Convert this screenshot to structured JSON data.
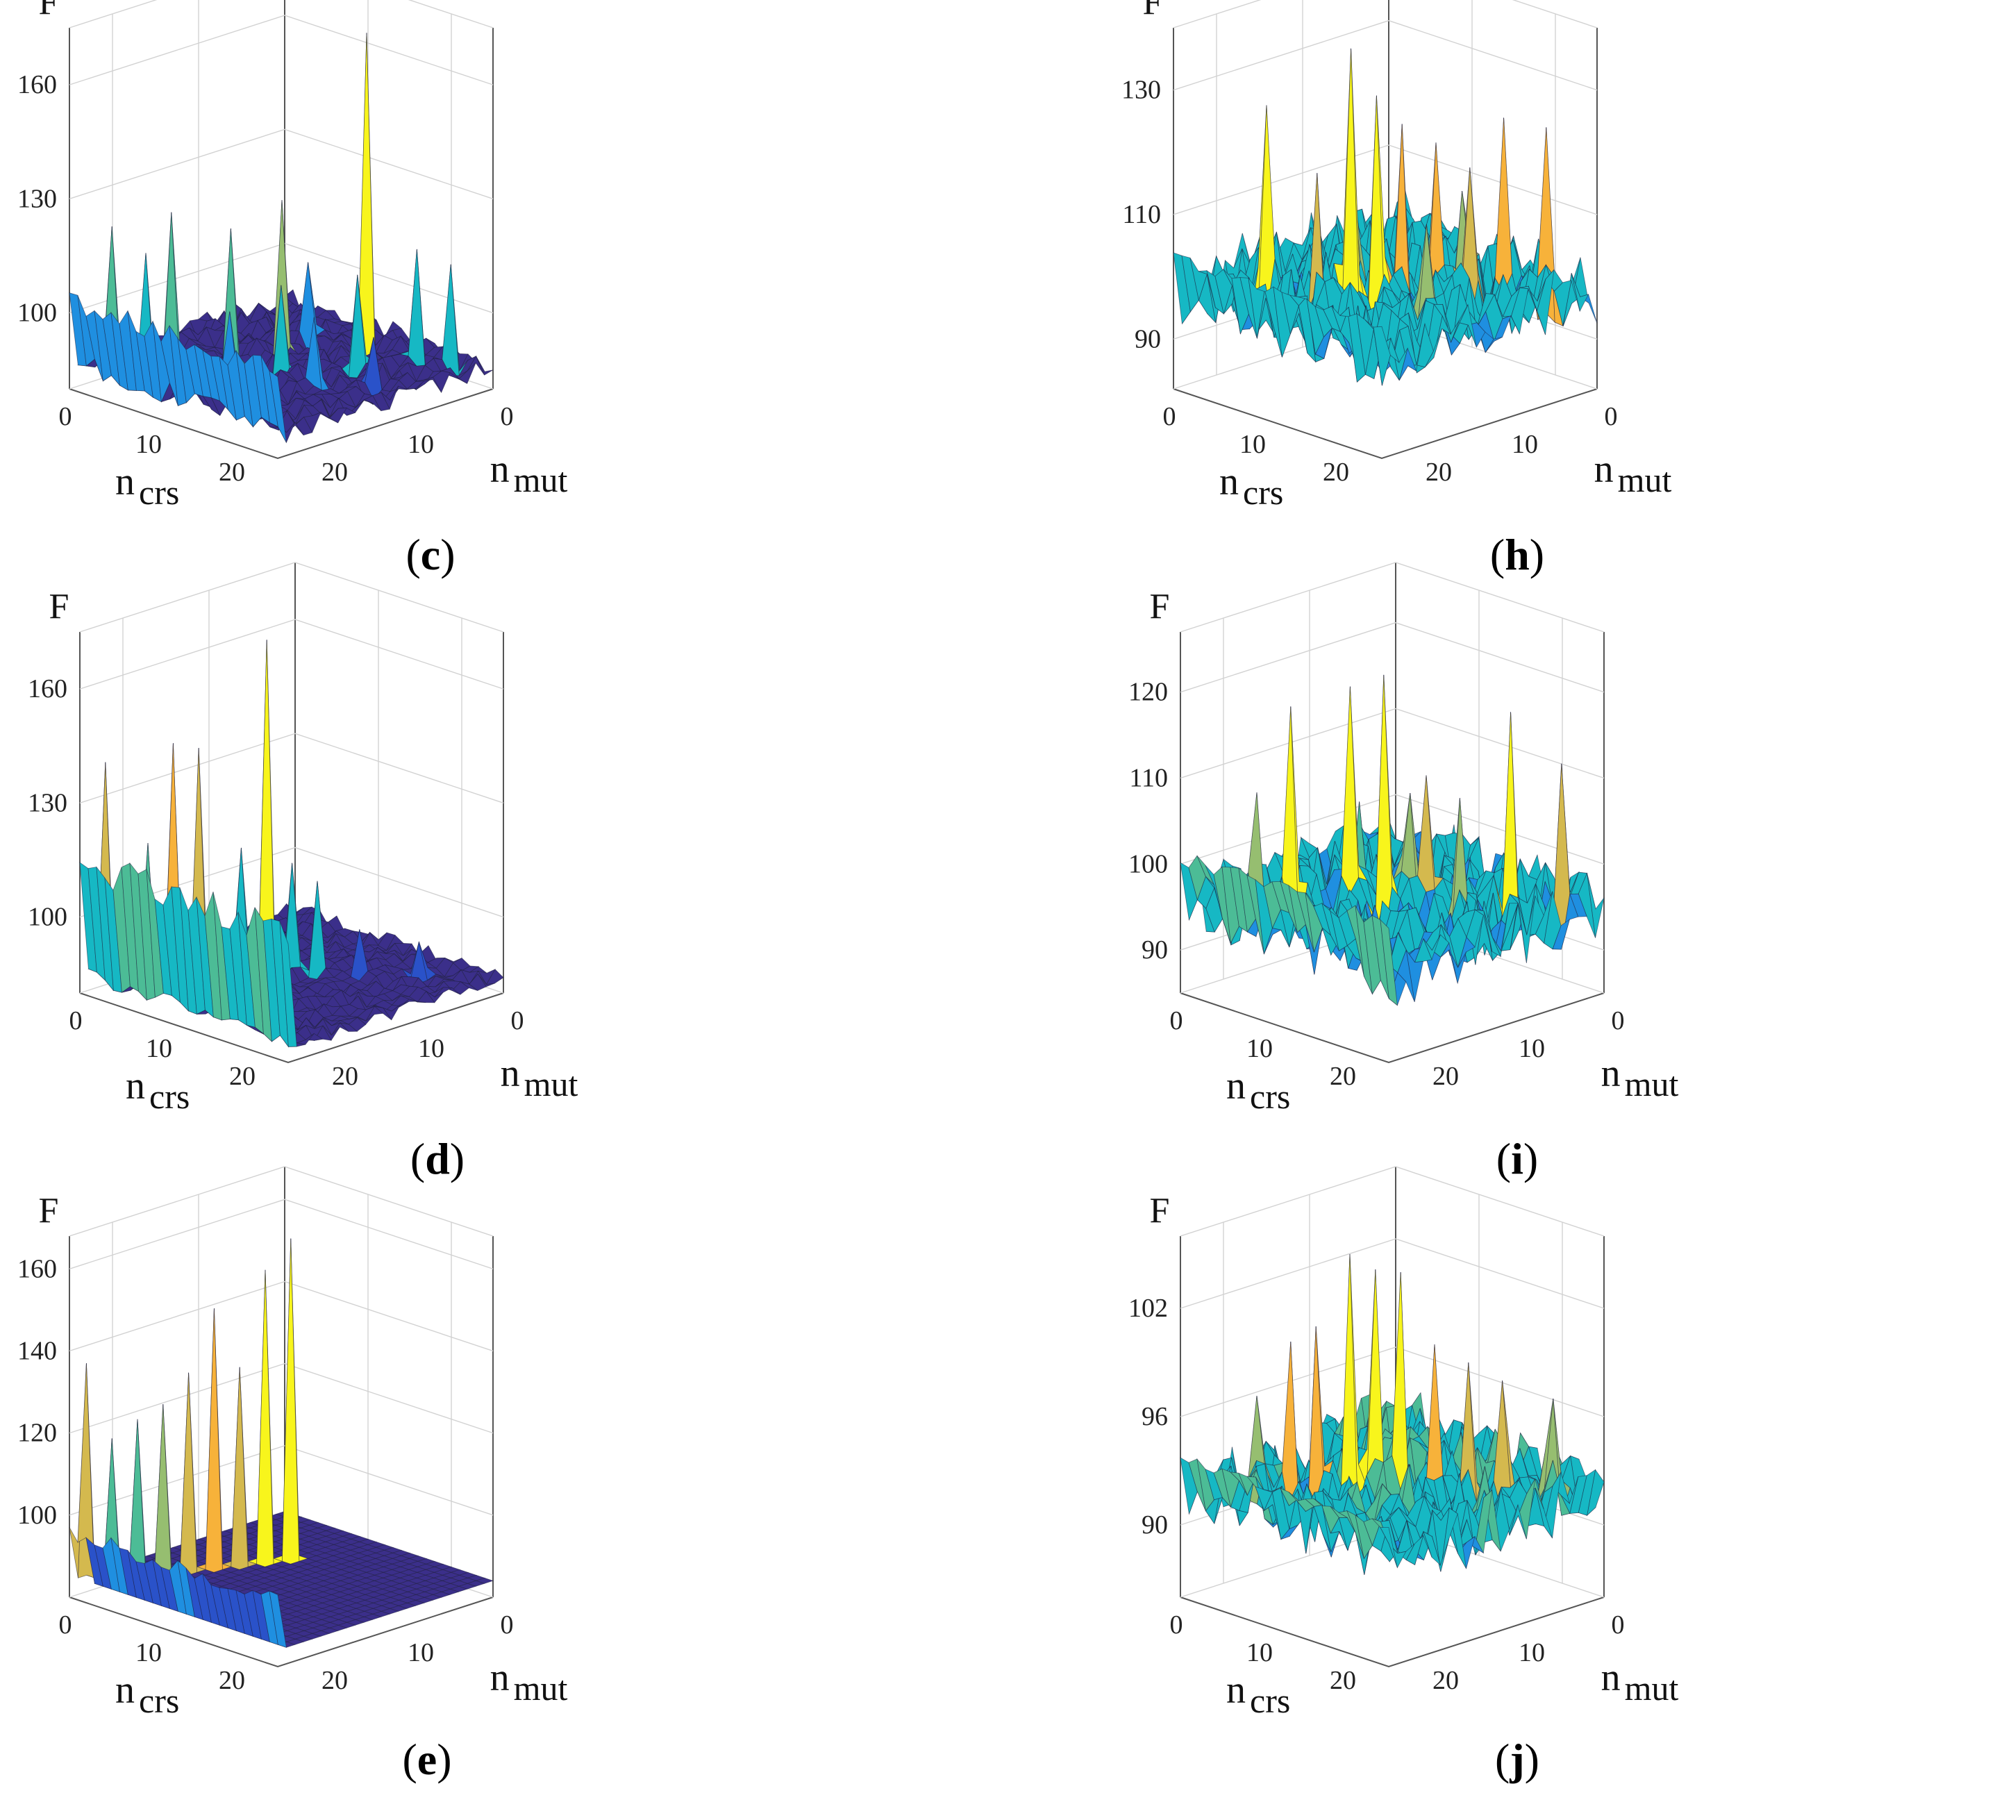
{
  "colors": {
    "level0": "#3b2f8a",
    "level1": "#2a52c9",
    "level2": "#1f8fe0",
    "level3": "#16b8c4",
    "level4": "#4cbc96",
    "level5": "#96be70",
    "level6": "#d4b94e",
    "level7": "#f7b23a",
    "level8": "#f8f51c"
  },
  "chart_data": [
    {
      "type": "surface3d",
      "panel": "c",
      "caption_open": "(",
      "caption_letter": "c",
      "caption_close": ")",
      "zlabel": "F",
      "xlabel_main": "n",
      "xlabel_sub": "crs",
      "ylabel_main": "n",
      "ylabel_sub": "mut",
      "zticks": [
        100,
        130,
        160
      ],
      "zlim": [
        80,
        175
      ],
      "x_ticks": [
        0,
        10,
        20
      ],
      "y_ticks": [
        0,
        10,
        20
      ],
      "xlim": [
        0,
        25
      ],
      "ylim": [
        0,
        25
      ],
      "base_level": 86,
      "noise": 3,
      "peaks": [
        {
          "x": 2,
          "y": 22,
          "z": 122
        },
        {
          "x": 4,
          "y": 20,
          "z": 115
        },
        {
          "x": 5,
          "y": 18,
          "z": 125
        },
        {
          "x": 8,
          "y": 14,
          "z": 120
        },
        {
          "x": 10,
          "y": 10,
          "z": 126
        },
        {
          "x": 13,
          "y": 13,
          "z": 108
        },
        {
          "x": 15,
          "y": 5,
          "z": 170
        },
        {
          "x": 17,
          "y": 8,
          "z": 110
        },
        {
          "x": 18,
          "y": 14,
          "z": 104
        },
        {
          "x": 20,
          "y": 4,
          "z": 116
        },
        {
          "x": 22,
          "y": 2,
          "z": 112
        },
        {
          "x": 12,
          "y": 18,
          "z": 104
        },
        {
          "x": 9,
          "y": 6,
          "z": 106
        },
        {
          "x": 21,
          "y": 10,
          "z": 98
        }
      ],
      "rise_edge": [
        0,
        106
      ]
    },
    {
      "type": "surface3d",
      "panel": "d",
      "caption_open": "(",
      "caption_letter": "d",
      "caption_close": ")",
      "zlabel": "F",
      "xlabel_main": "n",
      "xlabel_sub": "crs",
      "ylabel_main": "n",
      "ylabel_sub": "mut",
      "zticks": [
        100,
        130,
        160
      ],
      "zlim": [
        80,
        175
      ],
      "x_ticks": [
        0,
        10,
        20
      ],
      "y_ticks": [
        0,
        10,
        20
      ],
      "xlim": [
        0,
        25
      ],
      "ylim": [
        0,
        25
      ],
      "base_level": 84,
      "noise": 2,
      "peaks": [
        {
          "x": 1,
          "y": 23,
          "z": 140
        },
        {
          "x": 5,
          "y": 19,
          "z": 145
        },
        {
          "x": 6,
          "y": 17,
          "z": 143
        },
        {
          "x": 9,
          "y": 12,
          "z": 170
        },
        {
          "x": 3,
          "y": 20,
          "z": 118
        },
        {
          "x": 8,
          "y": 14,
          "z": 116
        },
        {
          "x": 11,
          "y": 11,
          "z": 112
        },
        {
          "x": 13,
          "y": 10,
          "z": 108
        },
        {
          "x": 16,
          "y": 8,
          "z": 96
        },
        {
          "x": 19,
          "y": 4,
          "z": 92
        }
      ],
      "rise_edge": [
        0,
        120
      ]
    },
    {
      "type": "surface3d",
      "panel": "e",
      "caption_open": "(",
      "caption_letter": "e",
      "caption_close": ")",
      "zlabel": "F",
      "xlabel_main": "n",
      "xlabel_sub": "crs",
      "ylabel_main": "n",
      "ylabel_sub": "mut",
      "zticks": [
        100,
        120,
        140,
        160
      ],
      "zlim": [
        80,
        168
      ],
      "x_ticks": [
        0,
        10,
        20
      ],
      "y_ticks": [
        0,
        10,
        20
      ],
      "xlim": [
        0,
        25
      ],
      "ylim": [
        0,
        25
      ],
      "base_level": 84,
      "noise": 0,
      "peaks": [
        {
          "x": 1,
          "y": 24,
          "z": 137
        },
        {
          "x": 2,
          "y": 22,
          "z": 118
        },
        {
          "x": 3,
          "y": 20,
          "z": 122
        },
        {
          "x": 4,
          "y": 18,
          "z": 125
        },
        {
          "x": 5,
          "y": 16,
          "z": 132
        },
        {
          "x": 6,
          "y": 14,
          "z": 147
        },
        {
          "x": 7,
          "y": 12,
          "z": 132
        },
        {
          "x": 8,
          "y": 10,
          "z": 155
        },
        {
          "x": 9,
          "y": 8,
          "z": 162
        }
      ],
      "rise_edge": [
        0,
        98
      ]
    },
    {
      "type": "surface3d",
      "panel": "h",
      "caption_open": "(",
      "caption_letter": "h",
      "caption_close": ")",
      "zlabel": "F",
      "xlabel_main": "n",
      "xlabel_sub": "crs",
      "ylabel_main": "n",
      "ylabel_sub": "mut",
      "zticks": [
        90,
        110,
        130
      ],
      "zlim": [
        82,
        140
      ],
      "x_ticks": [
        0,
        10,
        20
      ],
      "y_ticks": [
        0,
        10,
        20
      ],
      "xlim": [
        0,
        25
      ],
      "ylim": [
        0,
        25
      ],
      "base_level": 98,
      "noise": 6,
      "peaks": [
        {
          "x": 6,
          "y": 20,
          "z": 128
        },
        {
          "x": 12,
          "y": 16,
          "z": 138
        },
        {
          "x": 13,
          "y": 14,
          "z": 130
        },
        {
          "x": 14,
          "y": 12,
          "z": 125
        },
        {
          "x": 10,
          "y": 18,
          "z": 118
        },
        {
          "x": 16,
          "y": 10,
          "z": 122
        },
        {
          "x": 18,
          "y": 8,
          "z": 118
        },
        {
          "x": 20,
          "y": 6,
          "z": 126
        },
        {
          "x": 22,
          "y": 3,
          "z": 124
        },
        {
          "x": 15,
          "y": 6,
          "z": 112
        },
        {
          "x": 8,
          "y": 12,
          "z": 114
        },
        {
          "x": 19,
          "y": 14,
          "z": 112
        }
      ],
      "rise_edge": [
        0,
        104
      ]
    },
    {
      "type": "surface3d",
      "panel": "i",
      "caption_open": "(",
      "caption_letter": "i",
      "caption_close": ")",
      "zlabel": "F",
      "xlabel_main": "n",
      "xlabel_sub": "crs",
      "ylabel_main": "n",
      "ylabel_sub": "mut",
      "zticks": [
        90,
        100,
        110,
        120
      ],
      "zlim": [
        85,
        127
      ],
      "x_ticks": [
        0,
        10,
        20
      ],
      "y_ticks": [
        0,
        10,
        20
      ],
      "xlim": [
        0,
        25
      ],
      "ylim": [
        0,
        25
      ],
      "base_level": 95,
      "noise": 4,
      "peaks": [
        {
          "x": 6,
          "y": 18,
          "z": 118
        },
        {
          "x": 9,
          "y": 14,
          "z": 120
        },
        {
          "x": 12,
          "y": 13,
          "z": 122
        },
        {
          "x": 20,
          "y": 6,
          "z": 118
        },
        {
          "x": 23,
          "y": 3,
          "z": 112
        },
        {
          "x": 14,
          "y": 10,
          "z": 110
        },
        {
          "x": 4,
          "y": 20,
          "z": 108
        },
        {
          "x": 17,
          "y": 9,
          "z": 108
        },
        {
          "x": 10,
          "y": 8,
          "z": 106
        },
        {
          "x": 7,
          "y": 11,
          "z": 105
        }
      ],
      "rise_edge": [
        0,
        102
      ]
    },
    {
      "type": "surface3d",
      "panel": "j",
      "caption_open": "(",
      "caption_letter": "j",
      "caption_close": ")",
      "zlabel": "F",
      "xlabel_main": "n",
      "xlabel_sub": "crs",
      "ylabel_main": "n",
      "ylabel_sub": "mut",
      "zticks": [
        90,
        96,
        102
      ],
      "zlim": [
        86,
        106
      ],
      "x_ticks": [
        0,
        10,
        20
      ],
      "y_ticks": [
        0,
        10,
        20
      ],
      "xlim": [
        0,
        25
      ],
      "ylim": [
        0,
        25
      ],
      "base_level": 92,
      "noise": 2,
      "peaks": [
        {
          "x": 10,
          "y": 15,
          "z": 105
        },
        {
          "x": 11,
          "y": 13,
          "z": 104
        },
        {
          "x": 13,
          "y": 12,
          "z": 104
        },
        {
          "x": 8,
          "y": 17,
          "z": 101
        },
        {
          "x": 6,
          "y": 18,
          "z": 100
        },
        {
          "x": 15,
          "y": 10,
          "z": 100
        },
        {
          "x": 17,
          "y": 8,
          "z": 99
        },
        {
          "x": 19,
          "y": 6,
          "z": 98
        },
        {
          "x": 4,
          "y": 20,
          "z": 97
        },
        {
          "x": 22,
          "y": 3,
          "z": 97
        }
      ],
      "rise_edge": [
        0,
        94
      ]
    }
  ]
}
